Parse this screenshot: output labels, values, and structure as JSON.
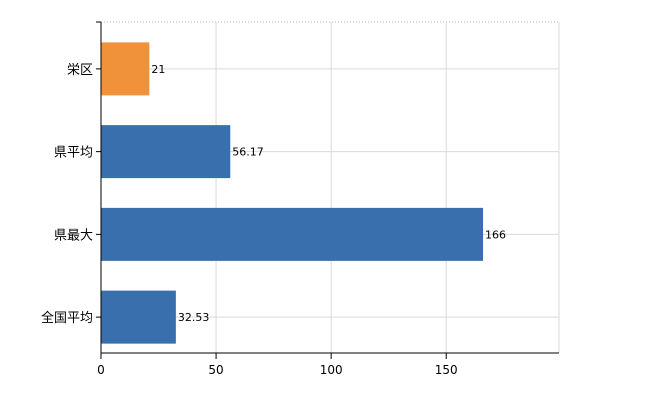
{
  "chart_data": {
    "type": "bar",
    "orientation": "horizontal",
    "categories": [
      "栄区",
      "県平均",
      "県最大",
      "全国平均"
    ],
    "values": [
      21,
      56.17,
      166,
      32.53
    ],
    "data_labels": [
      "21",
      "56.17",
      "166",
      "32.53"
    ],
    "bar_colors": [
      "#f0923a",
      "#3a6fad",
      "#3a6fad",
      "#3a6fad"
    ],
    "xticks": [
      0,
      50,
      100,
      150
    ],
    "xlim": [
      0,
      199
    ],
    "grid": true,
    "title": "",
    "xlabel": "",
    "ylabel": ""
  }
}
